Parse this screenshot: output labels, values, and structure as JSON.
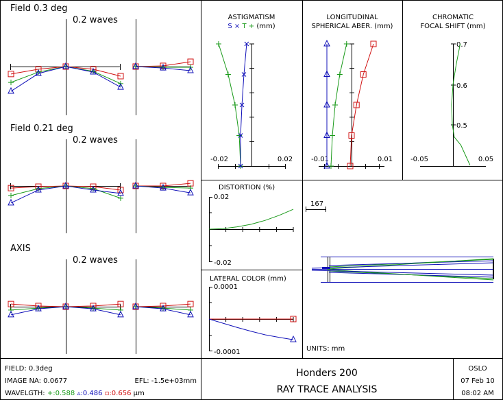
{
  "colors": {
    "green": "#1a9a1a",
    "blue": "#1010b8",
    "red": "#d01010",
    "axis": "#000000"
  },
  "fans": {
    "scale_label": "0.2 waves",
    "full_scale_waves": 0.2,
    "panels": [
      {
        "title": "Field 0.3 deg",
        "tangential": {
          "pupil": [
            -1,
            -0.5,
            0,
            0.5,
            1
          ],
          "red": [
            -0.031,
            -0.011,
            0,
            -0.011,
            -0.04
          ],
          "green": [
            -0.066,
            -0.023,
            0,
            -0.02,
            -0.071
          ],
          "blue": [
            -0.103,
            -0.029,
            0,
            -0.023,
            -0.086
          ]
        },
        "sagittal": {
          "pupil": [
            0,
            0.5,
            1
          ],
          "red": [
            0,
            0.003,
            0.02
          ],
          "green": [
            0,
            -0.003,
            -0.003
          ],
          "blue": [
            0,
            -0.006,
            -0.017
          ]
        }
      },
      {
        "title": "Field 0.21 deg",
        "tangential": {
          "pupil": [
            -1,
            -0.5,
            0,
            0.5,
            1
          ],
          "red": [
            -0.009,
            -0.003,
            0,
            -0.003,
            -0.017
          ],
          "green": [
            -0.04,
            -0.011,
            0,
            -0.011,
            -0.051
          ],
          "blue": [
            -0.071,
            -0.017,
            0,
            -0.017,
            -0.031
          ]
        },
        "sagittal": {
          "pupil": [
            0,
            0.5,
            1
          ],
          "red": [
            0,
            0,
            0.011
          ],
          "green": [
            0,
            -0.006,
            -0.009
          ],
          "blue": [
            0,
            -0.009,
            -0.029
          ]
        }
      },
      {
        "title": "AXIS",
        "tangential": {
          "pupil": [
            -1,
            -0.5,
            0,
            0.5,
            1
          ],
          "red": [
            0.011,
            0.003,
            0,
            0.003,
            0.011
          ],
          "green": [
            -0.014,
            -0.006,
            0,
            -0.006,
            -0.014
          ],
          "blue": [
            -0.034,
            -0.009,
            0,
            -0.009,
            -0.034
          ]
        },
        "sagittal": {
          "pupil": [
            0,
            0.5,
            1
          ],
          "red": [
            0,
            0.003,
            0.011
          ],
          "green": [
            0,
            -0.006,
            -0.014
          ],
          "blue": [
            0,
            -0.009,
            -0.034
          ]
        }
      }
    ]
  },
  "chart_data": [
    {
      "type": "line",
      "title": "ASTIGMATISM",
      "legend": {
        "s": "S",
        "x": "×",
        "t": "T",
        "plus": "+",
        "unit": "(mm)"
      },
      "xlim": [
        -0.02,
        0.02
      ],
      "tick_labels": [
        "-0.02",
        "0.02"
      ],
      "ylim": [
        0,
        0.3
      ],
      "field": [
        0.3,
        0.225,
        0.15,
        0.075,
        0
      ],
      "series": [
        {
          "name": "T",
          "values": [
            -0.0196,
            -0.0139,
            -0.0098,
            -0.0073,
            -0.0065
          ]
        },
        {
          "name": "S",
          "values": [
            -0.0029,
            -0.0045,
            -0.0057,
            -0.0065,
            -0.0065
          ]
        }
      ]
    },
    {
      "type": "line",
      "title": "LONGITUDINAL",
      "title2": "SPHERICAL ABER. (mm)",
      "xlim": [
        -0.01,
        0.01
      ],
      "tick_labels": [
        "-0.01",
        "0.01"
      ],
      "ylim": [
        0,
        1
      ],
      "pupil": [
        1,
        0.75,
        0.5,
        0.25,
        0
      ],
      "series": [
        {
          "name": "0.486",
          "values": [
            -0.009,
            -0.009,
            -0.009,
            -0.009,
            -0.009
          ]
        },
        {
          "name": "0.588",
          "values": [
            -0.0018,
            -0.0043,
            -0.006,
            -0.007,
            -0.0075
          ]
        },
        {
          "name": "0.656",
          "values": [
            0.008,
            0.0043,
            0.0018,
            0,
            -0.0005
          ]
        }
      ]
    },
    {
      "type": "line",
      "title": "CHROMATIC",
      "title2": "FOCAL SHIFT (mm)",
      "xlim": [
        -0.05,
        0.05
      ],
      "tick_labels": [
        "-0.05",
        "0.05"
      ],
      "ylim": [
        0.4,
        0.7
      ],
      "y_tick_labels": [
        "0.7",
        "0.6",
        "0.5"
      ],
      "wavelength": [
        0.4,
        0.45,
        0.47,
        0.5,
        0.55,
        0.6,
        0.65,
        0.7
      ],
      "values": [
        0.026,
        0.012,
        0.002,
        -0.001,
        -0.002,
        0,
        0.005,
        0.011
      ]
    },
    {
      "type": "line",
      "title": "DISTORTION (%)",
      "ylim": [
        -0.02,
        0.02
      ],
      "y_tick_labels": [
        "0.02",
        "-0.02"
      ],
      "xlim": [
        0,
        0.3
      ],
      "field": [
        0,
        0.05,
        0.1,
        0.15,
        0.2,
        0.25,
        0.3
      ],
      "values": [
        0,
        0.0003,
        0.0014,
        0.003,
        0.0054,
        0.0085,
        0.0122
      ]
    },
    {
      "type": "line",
      "title": "LATERAL COLOR (mm)",
      "ylim": [
        -0.0001,
        0.0001
      ],
      "y_tick_labels": [
        "0.0001",
        "-0.0001"
      ],
      "xlim": [
        0,
        0.3
      ],
      "field": [
        0,
        0.05,
        0.1,
        0.15,
        0.2,
        0.25,
        0.3
      ],
      "series": [
        {
          "name": "0.656",
          "values": [
            0,
            0,
            0,
            0,
            0,
            0,
            0
          ]
        },
        {
          "name": "0.486",
          "values": [
            0,
            -1.3e-05,
            -2.6e-05,
            -3.8e-05,
            -4.9e-05,
            -5.7e-05,
            -6.4e-05
          ]
        }
      ]
    }
  ],
  "layout_view": {
    "scale_label": "167",
    "units": "UNITS: mm"
  },
  "footer": {
    "field": "FIELD: 0.3deg",
    "image_na": "IMAGE NA: 0.0677",
    "efl": "EFL: -1.5e+03mm",
    "wavelength_label": "WAVELGTH:",
    "w1": "+:0.588",
    "w2": "▵:0.486",
    "w3": "▫:0.656",
    "w_unit": "µm",
    "lens_name": "Honders 200",
    "analysis": "RAY TRACE ANALYSIS",
    "program": "OSLO",
    "date": "07 Feb 10",
    "time": "08:02 AM"
  }
}
